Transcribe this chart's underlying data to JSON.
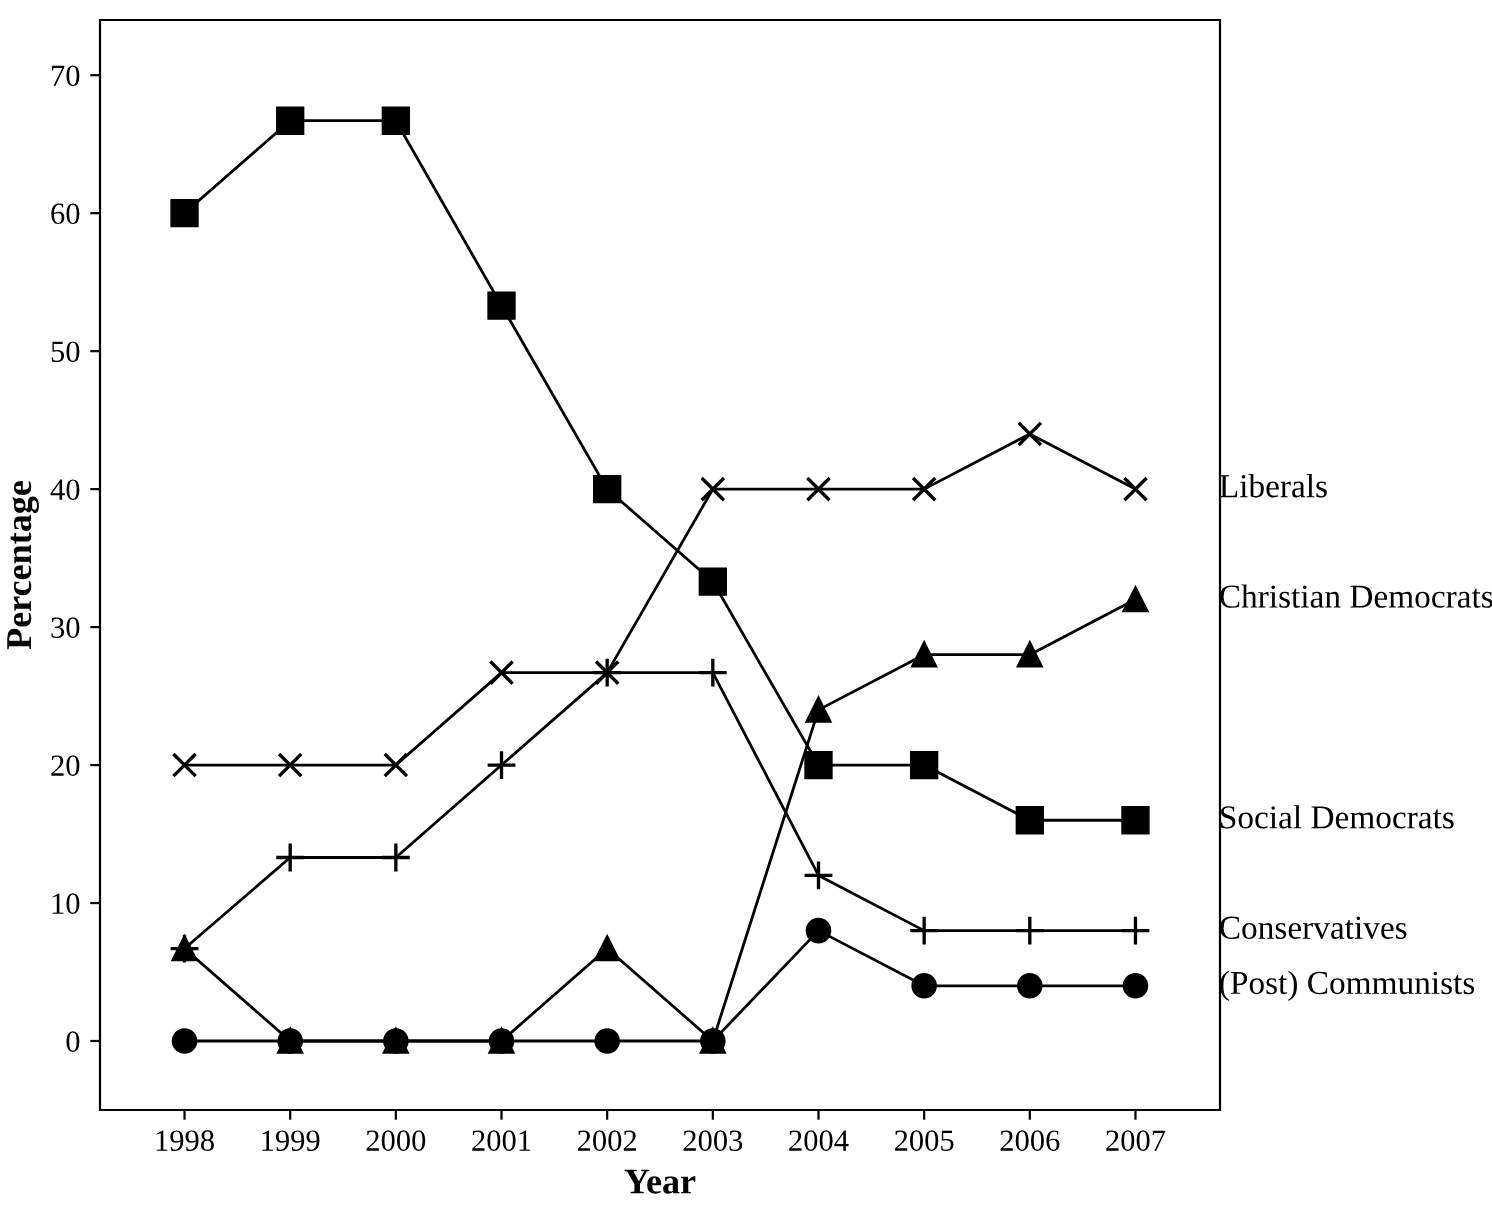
{
  "chart_data": {
    "type": "line",
    "xlabel": "Year",
    "ylabel": "Percentage",
    "x": [
      1998,
      1999,
      2000,
      2001,
      2002,
      2003,
      2004,
      2005,
      2006,
      2007
    ],
    "xlim": [
      1997.2,
      2007.8
    ],
    "xticks": [
      1998,
      1999,
      2000,
      2001,
      2002,
      2003,
      2004,
      2005,
      2006,
      2007
    ],
    "ylim": [
      -5,
      74
    ],
    "yticks": [
      0,
      10,
      20,
      30,
      40,
      50,
      60,
      70
    ],
    "grid": false,
    "line_style": "solid",
    "series": [
      {
        "name": "Liberals",
        "color": "#000000",
        "marker": "cross",
        "values": [
          20,
          20,
          20,
          26.7,
          26.7,
          40,
          40,
          40,
          44,
          40
        ]
      },
      {
        "name": "Christian Democrats",
        "color": "#000000",
        "marker": "triangle",
        "values": [
          6.7,
          0,
          0,
          0,
          6.7,
          0,
          24,
          28,
          28,
          32
        ]
      },
      {
        "name": "Social Democrats",
        "color": "#000000",
        "marker": "square",
        "values": [
          60,
          66.7,
          66.7,
          53.3,
          40,
          33.3,
          20,
          20,
          16,
          16
        ]
      },
      {
        "name": "Conservatives",
        "color": "#000000",
        "marker": "plus",
        "values": [
          6.7,
          13.3,
          13.3,
          20,
          26.7,
          26.7,
          12,
          8,
          8,
          8
        ]
      },
      {
        "name": "(Post) Communists",
        "color": "#000000",
        "marker": "circle",
        "values": [
          0,
          0,
          0,
          0,
          0,
          0,
          8,
          4,
          4,
          4
        ]
      }
    ]
  }
}
